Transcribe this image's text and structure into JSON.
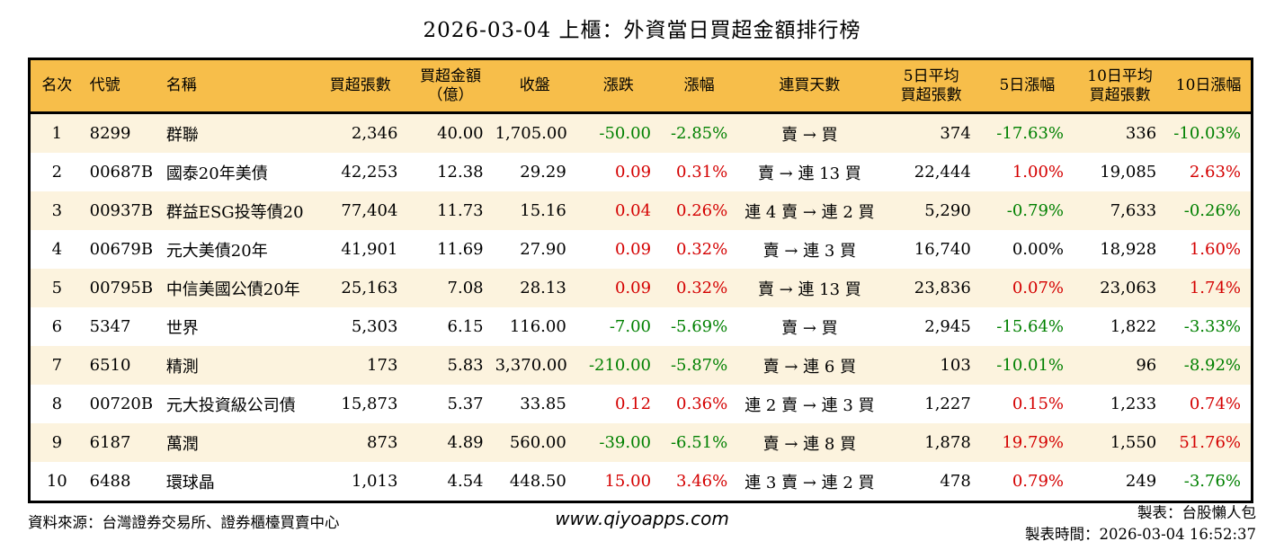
{
  "title": "2026-03-04 上櫃：外資當日買超金額排行榜",
  "colors": {
    "header_bg": "#F7BE4A",
    "alt_row_bg": "#FCF3DE",
    "up_red": "#D40000",
    "down_green": "#008000",
    "border_black": "#000000"
  },
  "table": {
    "headers": [
      "名次",
      "代號",
      "名稱",
      "買超張數",
      "買超金額\n（億）",
      "收盤",
      "漲跌",
      "漲幅",
      "連買天數",
      "5日平均\n買超張數",
      "5日漲幅",
      "10日平均\n買超張數",
      "10日漲幅"
    ],
    "rows": [
      [
        "1",
        "8299",
        "群聯",
        "2,346",
        "40.00",
        "1,705.00",
        "-50.00",
        "-2.85%",
        "賣 → 買",
        "374",
        "-17.63%",
        "336",
        "-10.03%"
      ],
      [
        "2",
        "00687B",
        "國泰20年美債",
        "42,253",
        "12.38",
        "29.29",
        "0.09",
        "0.31%",
        "賣 → 連 13 買",
        "22,444",
        "1.00%",
        "19,085",
        "2.63%"
      ],
      [
        "3",
        "00937B",
        "群益ESG投等債20",
        "77,404",
        "11.73",
        "15.16",
        "0.04",
        "0.26%",
        "連 4 賣 → 連 2 買",
        "5,290",
        "-0.79%",
        "7,633",
        "-0.26%"
      ],
      [
        "4",
        "00679B",
        "元大美債20年",
        "41,901",
        "11.69",
        "27.90",
        "0.09",
        "0.32%",
        "賣 → 連 3 買",
        "16,740",
        "0.00%",
        "18,928",
        "1.60%"
      ],
      [
        "5",
        "00795B",
        "中信美國公債20年",
        "25,163",
        "7.08",
        "28.13",
        "0.09",
        "0.32%",
        "賣 → 連 13 買",
        "23,836",
        "0.07%",
        "23,063",
        "1.74%"
      ],
      [
        "6",
        "5347",
        "世界",
        "5,303",
        "6.15",
        "116.00",
        "-7.00",
        "-5.69%",
        "賣 → 買",
        "2,945",
        "-15.64%",
        "1,822",
        "-3.33%"
      ],
      [
        "7",
        "6510",
        "精測",
        "173",
        "5.83",
        "3,370.00",
        "-210.00",
        "-5.87%",
        "賣 → 連 6 買",
        "103",
        "-10.01%",
        "96",
        "-8.92%"
      ],
      [
        "8",
        "00720B",
        "元大投資級公司債",
        "15,873",
        "5.37",
        "33.85",
        "0.12",
        "0.36%",
        "連 2 賣 → 連 3 買",
        "1,227",
        "0.15%",
        "1,233",
        "0.74%"
      ],
      [
        "9",
        "6187",
        "萬潤",
        "873",
        "4.89",
        "560.00",
        "-39.00",
        "-6.51%",
        "賣 → 連 8 買",
        "1,878",
        "19.79%",
        "1,550",
        "51.76%"
      ],
      [
        "10",
        "6488",
        "環球晶",
        "1,013",
        "4.54",
        "448.50",
        "15.00",
        "3.46%",
        "連 3 賣 → 連 2 買",
        "478",
        "0.79%",
        "249",
        "-3.76%"
      ]
    ]
  },
  "footer": {
    "source": "資料來源：台灣證券交易所、證券櫃檯買賣中心",
    "website": "www.qiyoapps.com",
    "author": "製表：台股懶人包",
    "generated": "製表時間：2026-03-04 16:52:37"
  }
}
